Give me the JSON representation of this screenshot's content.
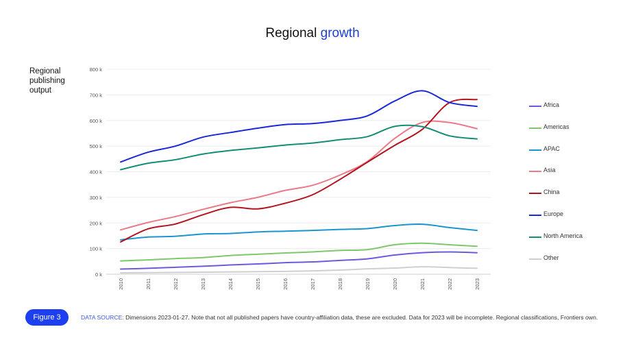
{
  "title": {
    "main": "Regional",
    "accent": "growth"
  },
  "y_axis_label_lines": [
    "Regional",
    "publishing",
    "output"
  ],
  "figure_button": "Figure 3",
  "source": {
    "label": "DATA SOURCE:",
    "text": "Dimensions 2023-01-27. Note that not all published papers have country-affiliation data, these are excluded. Data for 2023 will be incomplete. Regional classifications, Frontiers own."
  },
  "chart_data": {
    "type": "line",
    "title": "Regional growth",
    "ylabel": "Regional publishing output",
    "xlabel": "",
    "ylim": [
      0,
      800000
    ],
    "yticks": [
      0,
      100000,
      200000,
      300000,
      400000,
      500000,
      600000,
      700000,
      800000
    ],
    "ytick_labels": [
      "0 k",
      "100 k",
      "200 k",
      "300 k",
      "400 k",
      "500 k",
      "600 k",
      "700 k",
      "800 k"
    ],
    "grid": true,
    "legend_position": "right",
    "categories": [
      "2010",
      "2011",
      "2012",
      "2013",
      "2014",
      "2015",
      "2016",
      "2017",
      "2018",
      "2019",
      "2020",
      "2021",
      "2022",
      "2023"
    ],
    "series": [
      {
        "name": "Africa",
        "color": "#6a5ae0",
        "values": [
          20000,
          23000,
          27000,
          31000,
          36000,
          40000,
          45000,
          48000,
          54000,
          60000,
          75000,
          84000,
          87000,
          84000
        ]
      },
      {
        "name": "Americas",
        "color": "#7cc86b",
        "values": [
          52000,
          56000,
          61000,
          65000,
          73000,
          78000,
          83000,
          87000,
          93000,
          96000,
          115000,
          121000,
          115000,
          109000
        ]
      },
      {
        "name": "APAC",
        "color": "#1b95cf",
        "values": [
          134000,
          145000,
          148000,
          157000,
          159000,
          165000,
          168000,
          171000,
          175000,
          178000,
          190000,
          195000,
          182000,
          171000
        ]
      },
      {
        "name": "Asia",
        "color": "#e97a86",
        "values": [
          173000,
          202000,
          225000,
          253000,
          279000,
          300000,
          327000,
          347000,
          387000,
          440000,
          530000,
          592000,
          592000,
          568000
        ]
      },
      {
        "name": "China",
        "color": "#b3141e",
        "values": [
          126000,
          177000,
          196000,
          232000,
          261000,
          255000,
          277000,
          310000,
          370000,
          437000,
          503000,
          565000,
          670000,
          682000
        ]
      },
      {
        "name": "Europe",
        "color": "#1928d8",
        "values": [
          438000,
          476000,
          500000,
          535000,
          553000,
          570000,
          584000,
          588000,
          600000,
          618000,
          676000,
          716000,
          670000,
          655000
        ]
      },
      {
        "name": "North America",
        "color": "#138c78",
        "values": [
          408000,
          433000,
          447000,
          469000,
          483000,
          493000,
          504000,
          512000,
          525000,
          537000,
          577000,
          576000,
          540000,
          528000
        ]
      },
      {
        "name": "Other",
        "color": "#cfcfcf",
        "values": [
          5000,
          6000,
          7000,
          8000,
          9000,
          10000,
          11000,
          13000,
          16000,
          21000,
          24000,
          29000,
          26000,
          23000
        ]
      }
    ]
  }
}
